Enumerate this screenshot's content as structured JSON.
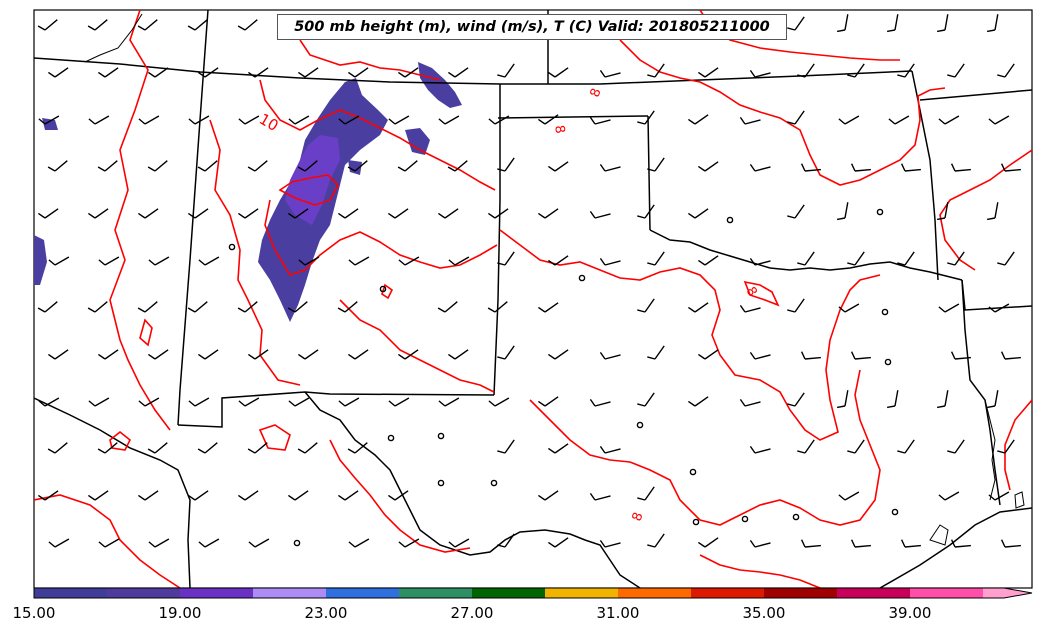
{
  "map": {
    "title": "500 mb height (m), wind (m/s), T (C) Valid: 201805211000",
    "contour_labels": [
      {
        "text": "10",
        "color": "#ff0000"
      },
      {
        "text": "10",
        "color": "#ff0000"
      },
      {
        "text": "8",
        "color": "#ff0000"
      },
      {
        "text": "8",
        "color": "#ff0000"
      },
      {
        "text": "8",
        "color": "#ff0000"
      },
      {
        "text": "8",
        "color": "#ff0000"
      }
    ],
    "contour_color": "#ff0000",
    "border_color": "#000000",
    "shading_colors": [
      "#4a3fa0",
      "#6a3fc8",
      "#7b2fd6"
    ]
  },
  "colorbar": {
    "ticks": [
      "15.00",
      "19.00",
      "23.00",
      "27.00",
      "31.00",
      "35.00",
      "39.00"
    ],
    "colors": [
      "#3f3d99",
      "#4f3a9e",
      "#6a31c4",
      "#ad8cf5",
      "#2f6fe0",
      "#2e8f62",
      "#006400",
      "#f0b400",
      "#ff6a00",
      "#dd1a00",
      "#a00000",
      "#c8005a",
      "#ff4fa8",
      "#ffa0cf"
    ],
    "extend": "max"
  }
}
